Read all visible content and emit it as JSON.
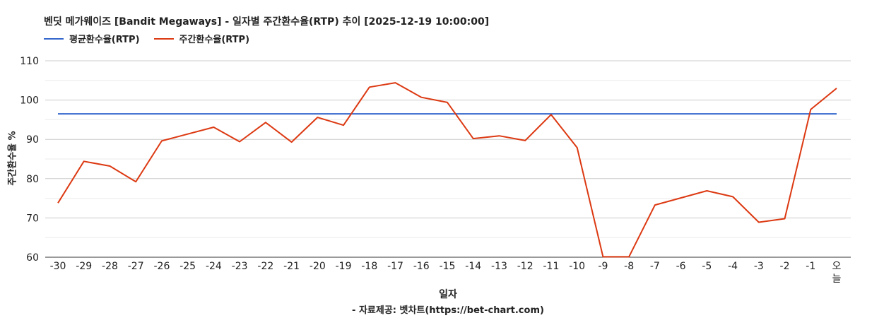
{
  "chart_data": {
    "type": "line",
    "title": "벤딧 메가웨이즈 [Bandit Megaways] - 일자별 주간환수율(RTP) 추이 [2025-12-19 10:00:00]",
    "xlabel": "일자",
    "ylabel": "주간환수율 %",
    "source": "- 자료제공: 벳차트(https://bet-chart.com)",
    "categories": [
      "-30",
      "-29",
      "-28",
      "-27",
      "-26",
      "-25",
      "-24",
      "-23",
      "-22",
      "-21",
      "-20",
      "-19",
      "-18",
      "-17",
      "-16",
      "-15",
      "-14",
      "-13",
      "-12",
      "-11",
      "-10",
      "-9",
      "-8",
      "-7",
      "-6",
      "-5",
      "-4",
      "-3",
      "-2",
      "-1",
      "오늘"
    ],
    "series": [
      {
        "name": "평균환수율(RTP)",
        "color": "#3366cc",
        "values": [
          96.5,
          96.5,
          96.5,
          96.5,
          96.5,
          96.5,
          96.5,
          96.5,
          96.5,
          96.5,
          96.5,
          96.5,
          96.5,
          96.5,
          96.5,
          96.5,
          96.5,
          96.5,
          96.5,
          96.5,
          96.5,
          96.5,
          96.5,
          96.5,
          96.5,
          96.5,
          96.5,
          96.5,
          96.5,
          96.5,
          96.5
        ]
      },
      {
        "name": "주간환수율(RTP)",
        "color": "#dc3912",
        "values": [
          73.8,
          84.4,
          83.2,
          79.2,
          89.6,
          null,
          93.1,
          89.4,
          94.3,
          89.3,
          95.6,
          93.6,
          103.3,
          104.4,
          100.7,
          99.4,
          90.2,
          90.9,
          89.7,
          96.3,
          87.9,
          60.1,
          60.1,
          73.3,
          null,
          76.9,
          75.4,
          68.9,
          69.8,
          97.6,
          103.0
        ]
      }
    ],
    "ylim": [
      60,
      110
    ],
    "yticks": [
      60,
      70,
      80,
      90,
      100,
      110
    ],
    "grid": true,
    "legend": "top-left"
  }
}
